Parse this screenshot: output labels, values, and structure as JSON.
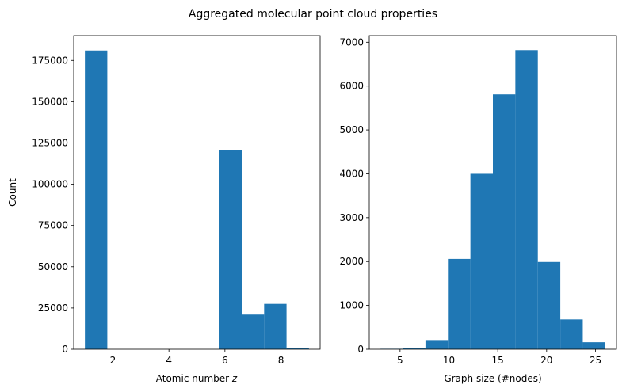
{
  "figure": {
    "suptitle": "Aggregated molecular point cloud properties"
  },
  "chart_data": [
    {
      "type": "bar",
      "subtype": "histogram",
      "xlabel": "Atomic number",
      "xlabel_var": "z",
      "ylabel": "Count",
      "xlim": [
        0.6,
        9.4
      ],
      "ylim": [
        0,
        190000
      ],
      "xticks": [
        2,
        4,
        6,
        8
      ],
      "yticks": [
        0,
        25000,
        50000,
        75000,
        100000,
        125000,
        150000,
        175000
      ],
      "bin_edges": [
        1.0,
        1.8,
        2.6,
        3.4,
        4.2,
        5.0,
        5.8,
        6.6,
        7.4,
        8.2,
        9.0
      ],
      "values": [
        181000,
        0,
        0,
        0,
        0,
        0,
        120500,
        21000,
        27500,
        500
      ],
      "color": "#1f77b4",
      "grid": false
    },
    {
      "type": "bar",
      "subtype": "histogram",
      "xlabel": "Graph size (#nodes)",
      "ylabel": "",
      "xlim": [
        1.85,
        27.15
      ],
      "ylim": [
        0,
        7150
      ],
      "xticks": [
        5,
        10,
        15,
        20,
        25
      ],
      "yticks": [
        0,
        1000,
        2000,
        3000,
        4000,
        5000,
        6000,
        7000
      ],
      "bin_edges": [
        3.0,
        5.3,
        7.6,
        9.9,
        12.2,
        14.5,
        16.8,
        19.1,
        21.4,
        23.7,
        26.0
      ],
      "values": [
        10,
        30,
        210,
        2060,
        4000,
        5810,
        6820,
        1990,
        680,
        160
      ],
      "color": "#1f77b4",
      "grid": false
    }
  ]
}
